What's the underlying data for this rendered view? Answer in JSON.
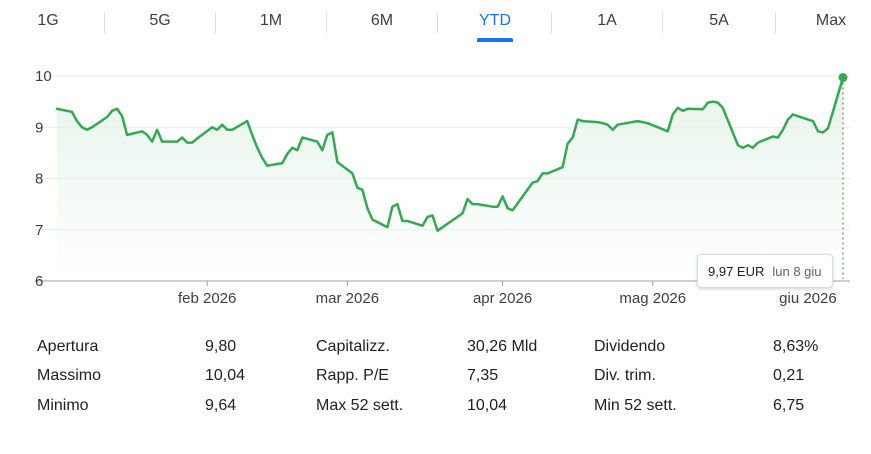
{
  "range_tabs": [
    {
      "label": "1G",
      "active": false
    },
    {
      "label": "5G",
      "active": false
    },
    {
      "label": "1M",
      "active": false
    },
    {
      "label": "6M",
      "active": false
    },
    {
      "label": "YTD",
      "active": true
    },
    {
      "label": "1A",
      "active": false
    },
    {
      "label": "5A",
      "active": false
    },
    {
      "label": "Max",
      "active": false
    }
  ],
  "colors": {
    "accent": "#1a73e8",
    "line": "#34a853",
    "fill_top": "#e6f4ea"
  },
  "tooltip": {
    "price": "9,97 EUR",
    "date": "lun 8 giu"
  },
  "chart_data": {
    "type": "area",
    "ylim": [
      6,
      10
    ],
    "y_ticks": [
      6,
      7,
      8,
      9,
      10
    ],
    "x_ticks": [
      {
        "label": "feb 2026",
        "x": "2026-02-01"
      },
      {
        "label": "mar 2026",
        "x": "2026-03-01"
      },
      {
        "label": "apr 2026",
        "x": "2026-04-01"
      },
      {
        "label": "mag 2026",
        "x": "2026-05-01"
      },
      {
        "label": "giu 2026",
        "x": "2026-06-01"
      }
    ],
    "xlim": [
      "2026-01-02",
      "2026-06-08"
    ],
    "grid": "horizontal",
    "series": [
      {
        "x": [
          "2026-01-02",
          "2026-01-05",
          "2026-01-06",
          "2026-01-07",
          "2026-01-08",
          "2026-01-09",
          "2026-01-12",
          "2026-01-13",
          "2026-01-14",
          "2026-01-15",
          "2026-01-16",
          "2026-01-19",
          "2026-01-20",
          "2026-01-21",
          "2026-01-22",
          "2026-01-23",
          "2026-01-26",
          "2026-01-27",
          "2026-01-28",
          "2026-01-29",
          "2026-01-30",
          "2026-02-02",
          "2026-02-03",
          "2026-02-04",
          "2026-02-05",
          "2026-02-06",
          "2026-02-09",
          "2026-02-10",
          "2026-02-11",
          "2026-02-12",
          "2026-02-13",
          "2026-02-16",
          "2026-02-17",
          "2026-02-18",
          "2026-02-19",
          "2026-02-20",
          "2026-02-23",
          "2026-02-24",
          "2026-02-25",
          "2026-02-26",
          "2026-02-27",
          "2026-03-02",
          "2026-03-03",
          "2026-03-04",
          "2026-03-05",
          "2026-03-06",
          "2026-03-09",
          "2026-03-10",
          "2026-03-11",
          "2026-03-12",
          "2026-03-13",
          "2026-03-16",
          "2026-03-17",
          "2026-03-18",
          "2026-03-19",
          "2026-03-20",
          "2026-03-23",
          "2026-03-24",
          "2026-03-25",
          "2026-03-26",
          "2026-03-27",
          "2026-03-30",
          "2026-03-31",
          "2026-04-01",
          "2026-04-02",
          "2026-04-03",
          "2026-04-07",
          "2026-04-08",
          "2026-04-09",
          "2026-04-10",
          "2026-04-13",
          "2026-04-14",
          "2026-04-15",
          "2026-04-16",
          "2026-04-17",
          "2026-04-20",
          "2026-04-21",
          "2026-04-22",
          "2026-04-23",
          "2026-04-24",
          "2026-04-28",
          "2026-04-29",
          "2026-04-30",
          "2026-05-04",
          "2026-05-05",
          "2026-05-06",
          "2026-05-07",
          "2026-05-08",
          "2026-05-11",
          "2026-05-12",
          "2026-05-13",
          "2026-05-14",
          "2026-05-15",
          "2026-05-18",
          "2026-05-19",
          "2026-05-20",
          "2026-05-21",
          "2026-05-22",
          "2026-05-25",
          "2026-05-26",
          "2026-05-27",
          "2026-05-28",
          "2026-05-29",
          "2026-06-01",
          "2026-06-02",
          "2026-06-03",
          "2026-06-04",
          "2026-06-05",
          "2026-06-08"
        ],
        "y": [
          9.36,
          9.3,
          9.12,
          9.0,
          8.95,
          9.0,
          9.2,
          9.32,
          9.36,
          9.22,
          8.85,
          8.92,
          8.85,
          8.72,
          8.95,
          8.72,
          8.72,
          8.8,
          8.7,
          8.7,
          8.78,
          9.0,
          8.95,
          9.05,
          8.95,
          8.95,
          9.12,
          8.85,
          8.6,
          8.4,
          8.25,
          8.3,
          8.48,
          8.6,
          8.55,
          8.8,
          8.72,
          8.55,
          8.85,
          8.9,
          8.32,
          8.1,
          7.82,
          7.78,
          7.42,
          7.2,
          7.05,
          7.45,
          7.5,
          7.17,
          7.17,
          7.08,
          7.25,
          7.28,
          6.98,
          7.05,
          7.25,
          7.32,
          7.6,
          7.5,
          7.5,
          7.45,
          7.45,
          7.65,
          7.42,
          7.38,
          7.92,
          7.95,
          8.1,
          8.1,
          8.22,
          8.68,
          8.8,
          9.15,
          9.12,
          9.1,
          9.08,
          9.05,
          8.95,
          9.05,
          9.12,
          9.1,
          9.08,
          8.92,
          9.25,
          9.38,
          9.32,
          9.36,
          9.35,
          9.48,
          9.5,
          9.48,
          9.38,
          8.65,
          8.6,
          8.65,
          8.6,
          8.7,
          8.82,
          8.8,
          8.95,
          9.15,
          9.25,
          9.15,
          9.12,
          8.92,
          8.9,
          8.98,
          9.97
        ]
      }
    ]
  },
  "stats": {
    "col1": [
      {
        "label": "Apertura",
        "value": "9,80"
      },
      {
        "label": "Massimo",
        "value": "10,04"
      },
      {
        "label": "Minimo",
        "value": "9,64"
      }
    ],
    "col2": [
      {
        "label": "Capitalizz.",
        "value": "30,26 Mld"
      },
      {
        "label": "Rapp. P/E",
        "value": "7,35"
      },
      {
        "label": "Max 52 sett.",
        "value": "10,04"
      }
    ],
    "col3": [
      {
        "label": "Dividendo",
        "value": "8,63%"
      },
      {
        "label": "Div. trim.",
        "value": "0,21"
      },
      {
        "label": "Min 52 sett.",
        "value": "6,75"
      }
    ]
  }
}
